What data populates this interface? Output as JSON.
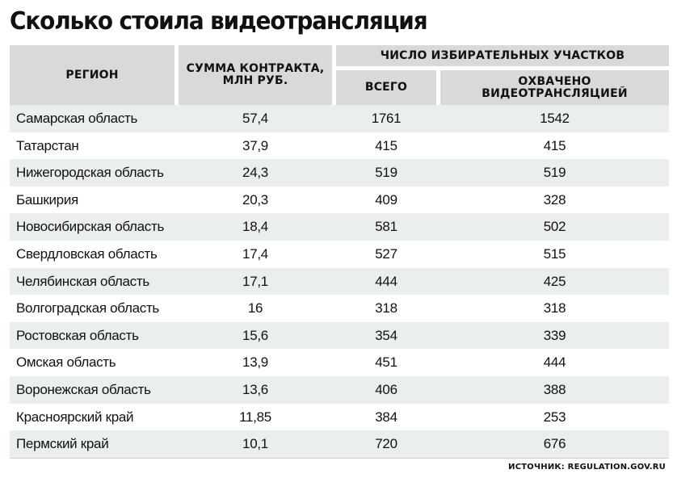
{
  "title": "Сколько стоила видеотрансляция",
  "header": {
    "region": "РЕГИОН",
    "sum": "СУММА КОНТРАКТА,\nМЛН РУБ.",
    "group": "ЧИСЛО ИЗБИРАТЕЛЬНЫХ УЧАСТКОВ",
    "total": "ВСЕГО",
    "covered": "ОХВАЧЕНО\nВИДЕОТРАНСЛЯЦИЕЙ"
  },
  "rows": [
    {
      "region": "Самарская область",
      "sum": "57,4",
      "total": "1761",
      "covered": "1542"
    },
    {
      "region": "Татарстан",
      "sum": "37,9",
      "total": "415",
      "covered": "415"
    },
    {
      "region": "Нижегородская область",
      "sum": "24,3",
      "total": "519",
      "covered": "519"
    },
    {
      "region": "Башкирия",
      "sum": "20,3",
      "total": "409",
      "covered": "328"
    },
    {
      "region": "Новосибирская область",
      "sum": "18,4",
      "total": "581",
      "covered": "502"
    },
    {
      "region": "Свердловская область",
      "sum": "17,4",
      "total": "527",
      "covered": "515"
    },
    {
      "region": "Челябинская область",
      "sum": "17,1",
      "total": "444",
      "covered": "425"
    },
    {
      "region": "Волгоградская область",
      "sum": "16",
      "total": "318",
      "covered": "318"
    },
    {
      "region": "Ростовская область",
      "sum": "15,6",
      "total": "354",
      "covered": "339"
    },
    {
      "region": "Омская область",
      "sum": "13,9",
      "total": "451",
      "covered": "444"
    },
    {
      "region": "Воронежская область",
      "sum": "13,6",
      "total": "406",
      "covered": "388"
    },
    {
      "region": "Красноярский край",
      "sum": "11,85",
      "total": "384",
      "covered": "253"
    },
    {
      "region": "Пермский край",
      "sum": "10,1",
      "total": "720",
      "covered": "676"
    }
  ],
  "source": "ИСТОЧНИК: REGULATION.GOV.RU",
  "colors": {
    "header_bg": "#d9d9d9",
    "stripe_bg": "#eaeeee",
    "text": "#111111"
  }
}
